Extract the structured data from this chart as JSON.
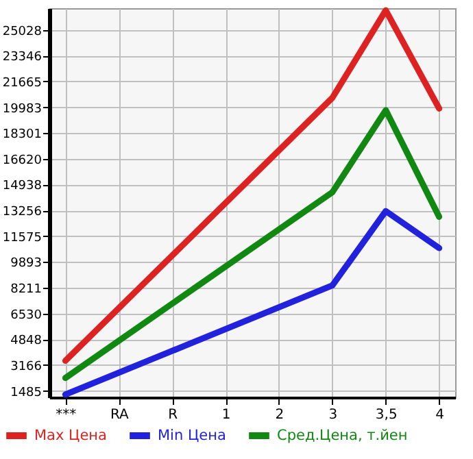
{
  "chart_data": {
    "type": "line",
    "categories": [
      "***",
      "RA",
      "R",
      "1",
      "2",
      "3",
      "3,5",
      "4"
    ],
    "series": [
      {
        "name": "Max Цена",
        "color": "#dd2222",
        "values": [
          3450,
          null,
          null,
          null,
          null,
          20600,
          26300,
          19900
        ]
      },
      {
        "name": "Min Цена",
        "color": "#2222dd",
        "values": [
          1250,
          null,
          null,
          null,
          null,
          8360,
          13210,
          10800
        ]
      },
      {
        "name": "Сред.Цена, т.йен",
        "color": "#118811",
        "values": [
          2330,
          null,
          null,
          null,
          null,
          14440,
          19790,
          12840
        ]
      }
    ],
    "ylim": [
      1065,
      26440
    ],
    "yticks": [
      1485,
      3166,
      4848,
      6530,
      8211,
      9893,
      11575,
      13256,
      14938,
      16620,
      18301,
      19983,
      21665,
      23346,
      25028
    ],
    "grid": true,
    "legend": "bottom",
    "marker": "none",
    "line_style": "solid"
  }
}
